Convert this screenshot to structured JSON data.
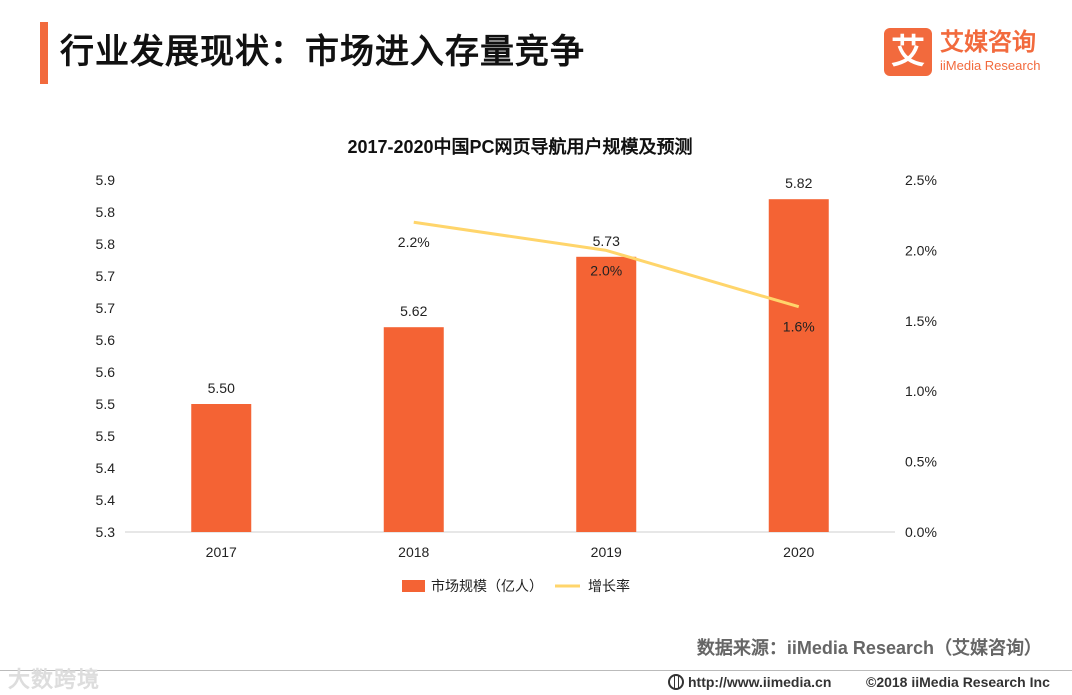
{
  "header": {
    "title": "行业发展现状：市场进入存量竞争"
  },
  "logo": {
    "glyph": "艾",
    "name": "艾媒咨询",
    "sub": "iiMedia Research"
  },
  "chart_data": {
    "type": "bar+line",
    "title": "2017-2020中国PC网页导航用户规模及预测",
    "categories": [
      "2017",
      "2018",
      "2019",
      "2020"
    ],
    "series": [
      {
        "name": "市场规模（亿人）",
        "type": "bar",
        "axis": "left",
        "color": "#f46334",
        "values": [
          5.5,
          5.62,
          5.73,
          5.82
        ],
        "labels": [
          "5.50",
          "5.62",
          "5.73",
          "5.82"
        ]
      },
      {
        "name": "增长率",
        "type": "line",
        "axis": "right",
        "color": "#ffd56b",
        "values": [
          null,
          2.2,
          2.0,
          1.6
        ],
        "labels": [
          "",
          "2.2%",
          "2.0%",
          "1.6%"
        ]
      }
    ],
    "left_axis": {
      "ylim": [
        5.3,
        5.85
      ],
      "ticks": [
        "5.9",
        "5.8",
        "5.8",
        "5.7",
        "5.7",
        "5.6",
        "5.6",
        "5.5",
        "5.5",
        "5.4",
        "5.4",
        "5.3"
      ]
    },
    "right_axis": {
      "ylim": [
        0,
        2.5
      ],
      "unit": "%",
      "ticks": [
        "2.5%",
        "2.0%",
        "1.5%",
        "1.0%",
        "0.5%",
        "0.0%"
      ]
    },
    "legend": "bottom-center",
    "grid": false
  },
  "source": "数据来源：iiMedia Research（艾媒咨询）",
  "footer": {
    "watermark": "大数跨境",
    "url": "http://www.iimedia.cn",
    "copyright": "©2018  iiMedia Research  Inc"
  }
}
